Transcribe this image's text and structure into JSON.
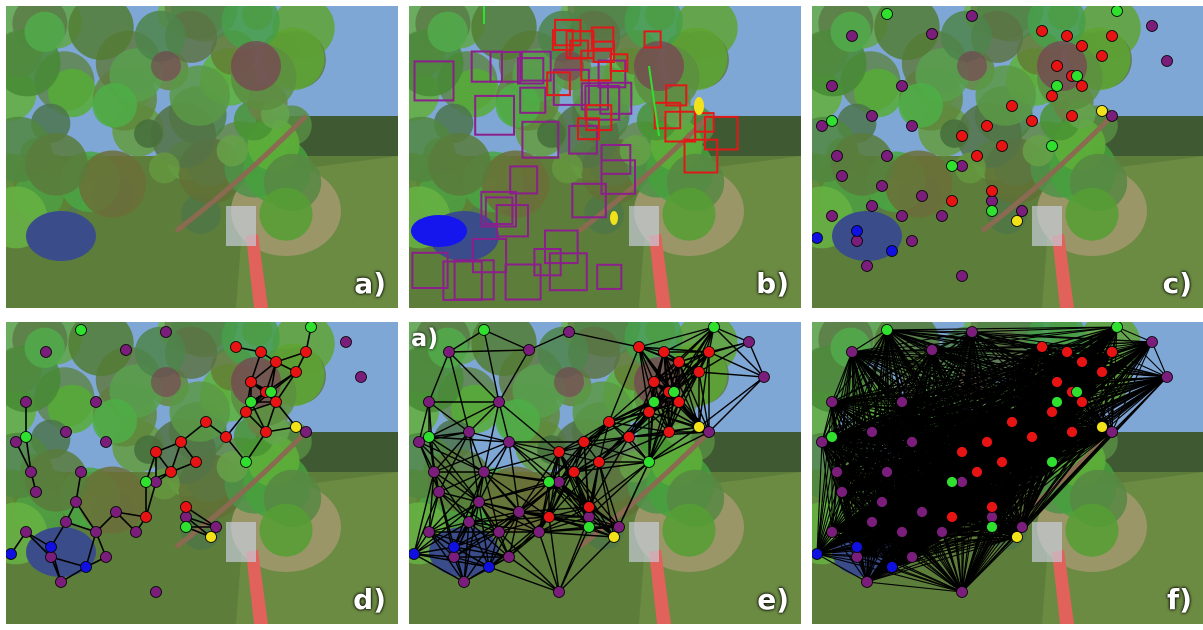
{
  "panels": [
    {
      "label": "a)",
      "overlay": "none"
    },
    {
      "label": "b)",
      "overlay": "bounding-boxes"
    },
    {
      "label": "c)",
      "overlay": "points"
    },
    {
      "label": "d)",
      "overlay": "sparse-graph"
    },
    {
      "label": "e)",
      "overlay": "medium-graph",
      "stray_label": "a)"
    },
    {
      "label": "f)",
      "overlay": "dense-graph"
    }
  ],
  "colors": {
    "leaf": "#6f9a4e",
    "sky": "#7ea7d6",
    "grass": "#5d7d3a",
    "branch": "#8a6a50",
    "pole": "#e0625a",
    "purple_node": "#7b1e7b",
    "red_node": "#e81414",
    "green_node": "#2fe02f",
    "blue_node": "#1010e0",
    "yellow_node": "#f2e21a",
    "edge": "#000000"
  }
}
